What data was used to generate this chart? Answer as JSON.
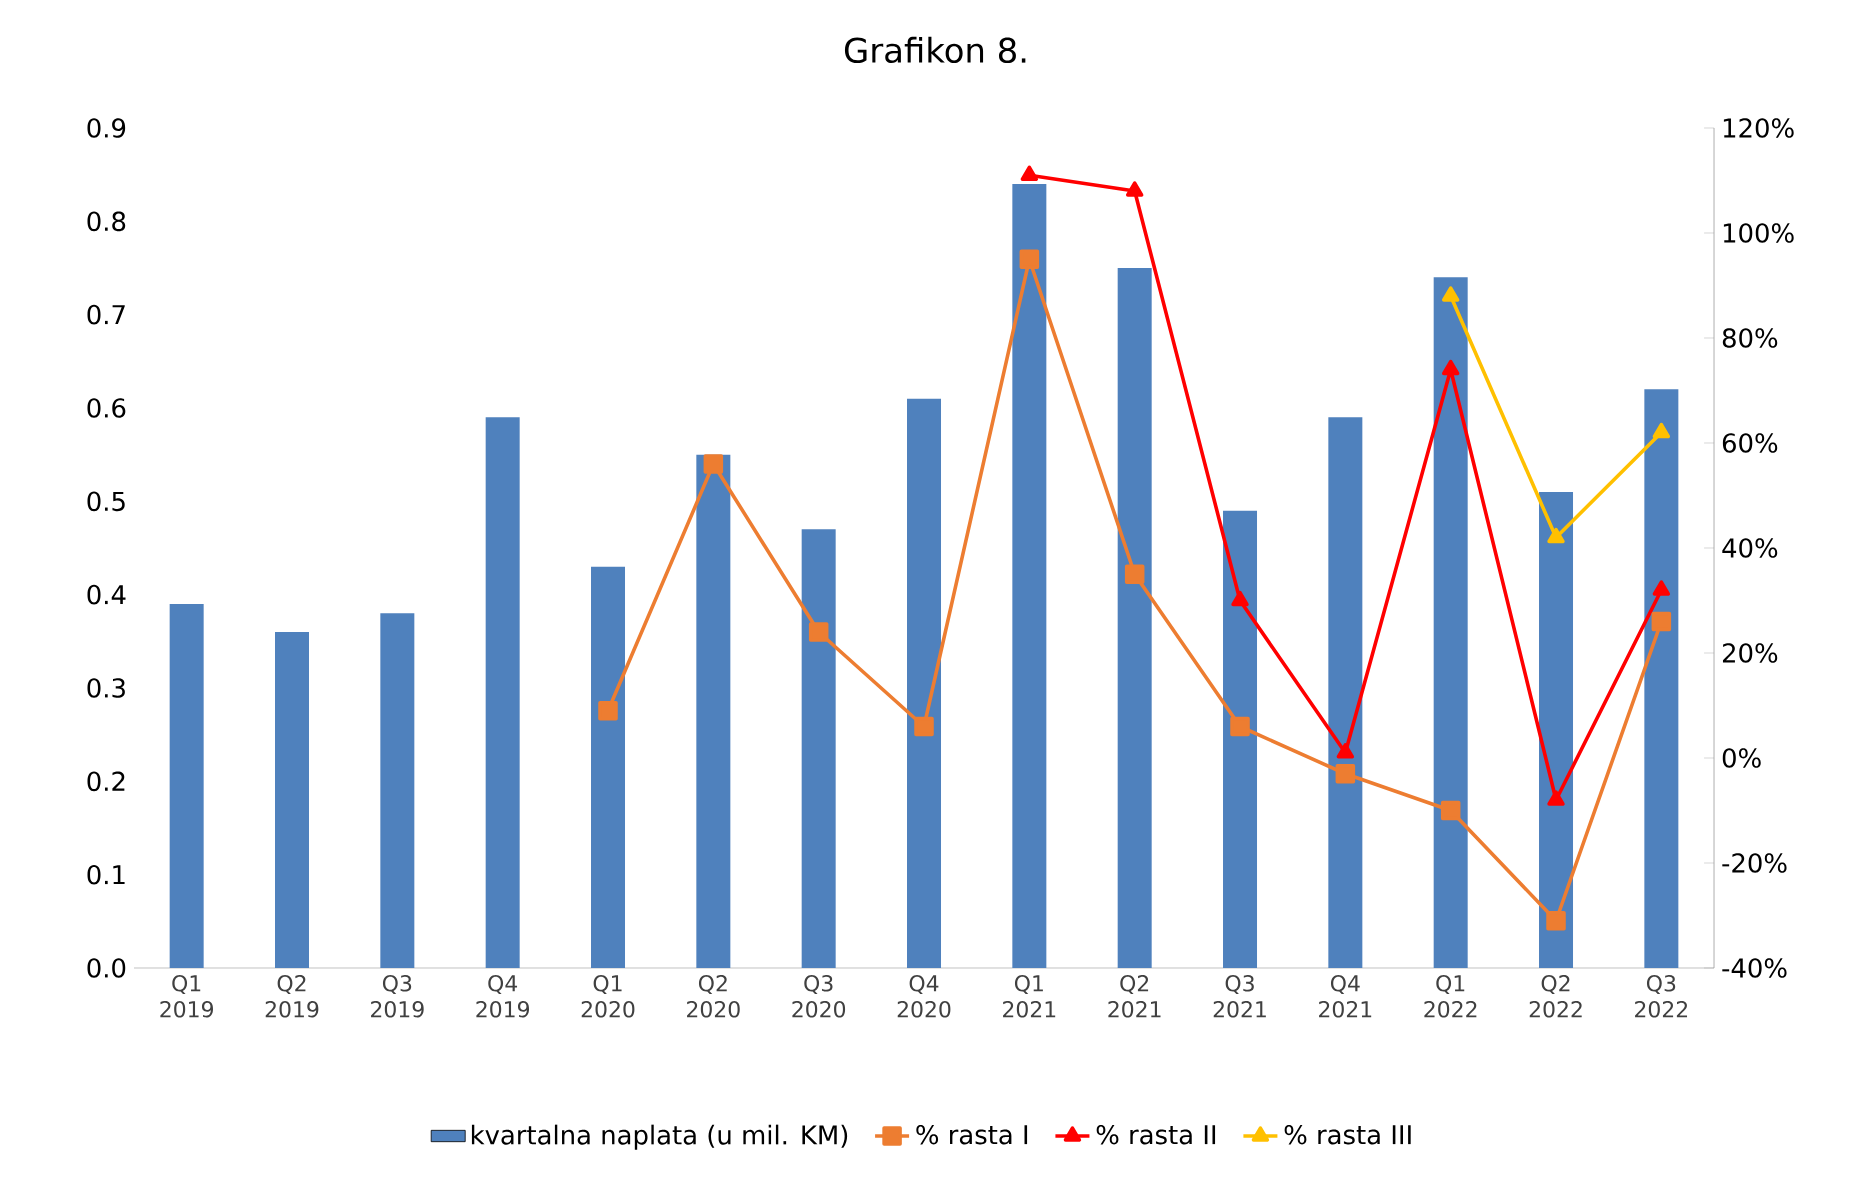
{
  "chart_data": {
    "type": "bar",
    "title": "Grafikon 8.",
    "categories": [
      "Q1 2019",
      "Q2 2019",
      "Q3 2019",
      "Q4 2019",
      "Q1 2020",
      "Q2 2020",
      "Q3 2020",
      "Q4 2020",
      "Q1 2021",
      "Q2 2021",
      "Q3 2021",
      "Q4 2021",
      "Q1 2022",
      "Q2 2022",
      "Q3 2022"
    ],
    "series": [
      {
        "name": "kvartalna naplata (u mil. KM)",
        "color": "#4f81bd",
        "values": [
          0.39,
          0.36,
          0.38,
          0.59,
          0.43,
          0.55,
          0.47,
          0.61,
          0.84,
          0.75,
          0.49,
          0.59,
          0.74,
          0.51,
          0.62
        ]
      },
      {
        "name": "% rasta I",
        "type": "line",
        "axis": "y2",
        "color": "#ed7d31",
        "marker": "square",
        "values": [
          null,
          null,
          null,
          null,
          9,
          56,
          24,
          6,
          95,
          35,
          6,
          -3,
          -10,
          -31,
          26
        ]
      },
      {
        "name": "% rasta II",
        "type": "line",
        "axis": "y2",
        "color": "#ff0000",
        "marker": "triangle",
        "values": [
          null,
          null,
          null,
          null,
          null,
          null,
          null,
          null,
          111,
          108,
          30,
          1,
          74,
          -8,
          32
        ]
      },
      {
        "name": "% rasta III",
        "type": "line",
        "axis": "y2",
        "color": "#ffc000",
        "marker": "triangle",
        "values": [
          null,
          null,
          null,
          null,
          null,
          null,
          null,
          null,
          null,
          null,
          null,
          null,
          88,
          42,
          62
        ]
      }
    ],
    "ylim": [
      0,
      0.9
    ],
    "yticks": [
      {
        "value": 0,
        "label": "0.0"
      },
      0.1,
      0.2,
      0.3,
      0.4,
      0.5,
      0.6,
      0.7,
      0.8,
      0.9
    ],
    "y2lim": [
      -40,
      120
    ],
    "y2ticks": [
      {
        "value": -40,
        "label": "-40%"
      },
      {
        "value": -20,
        "label": "-20%"
      },
      {
        "value": 0,
        "label": "0%"
      },
      {
        "value": 20,
        "label": "20%"
      },
      {
        "value": 40,
        "label": "40%"
      },
      {
        "value": 60,
        "label": "60%"
      },
      {
        "value": 80,
        "label": "80%"
      },
      {
        "value": 100,
        "label": "100%"
      },
      {
        "value": 120,
        "label": "120%"
      }
    ],
    "legend": "bottom"
  }
}
